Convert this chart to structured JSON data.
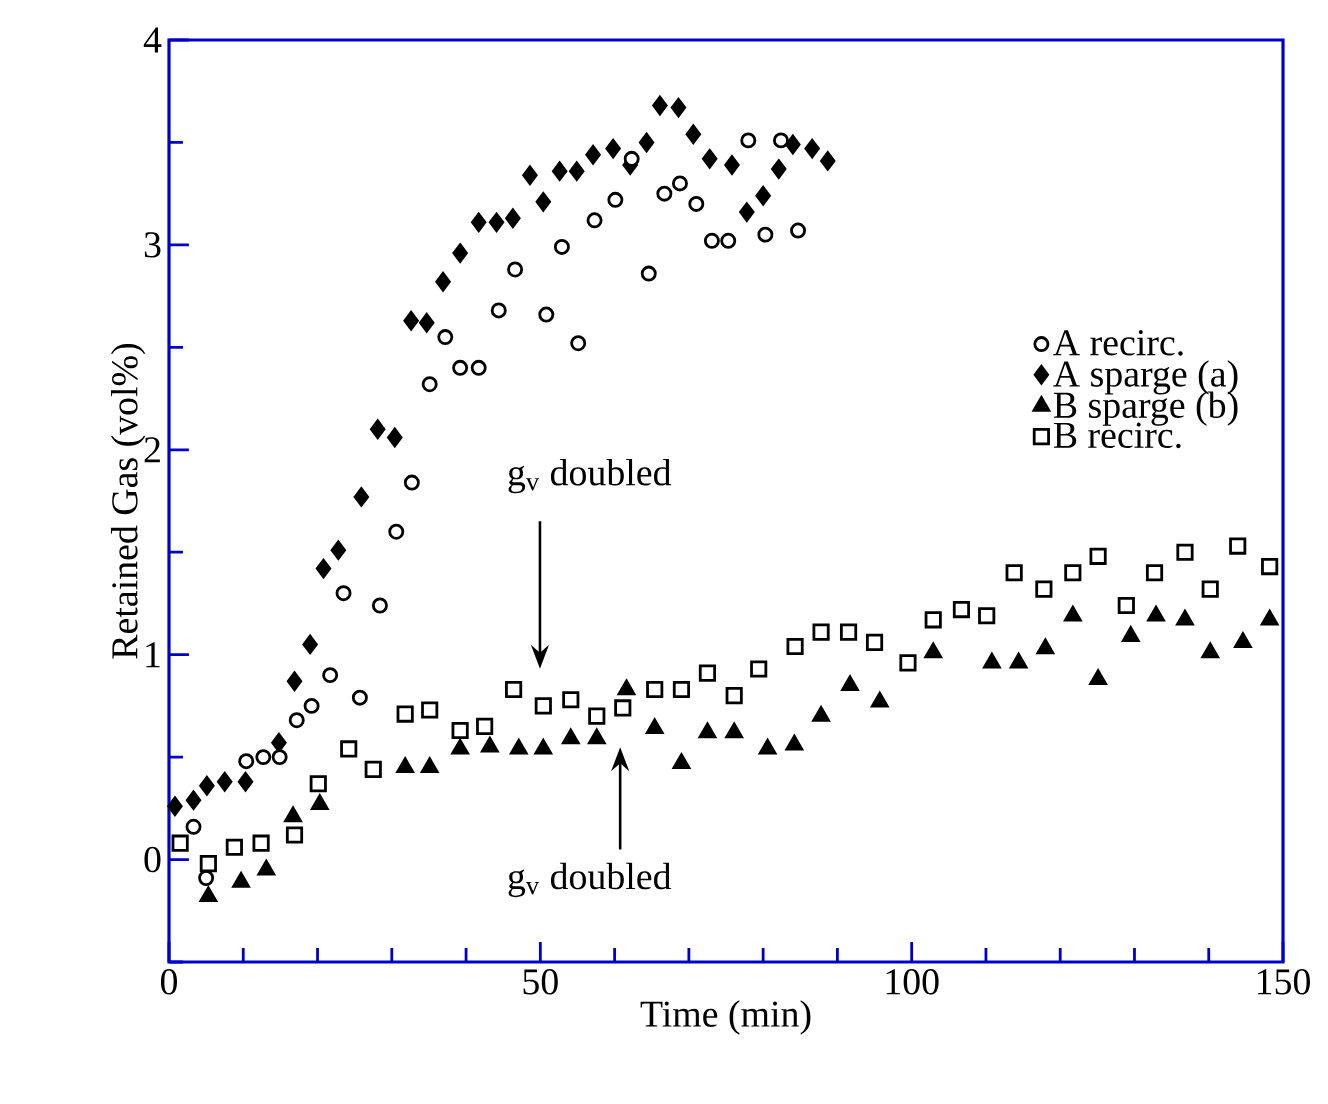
{
  "chart_data": {
    "type": "scatter",
    "xlabel": "Time (min)",
    "ylabel": "Retained Gas (vol%)",
    "xlim": [
      0,
      150
    ],
    "ylim": [
      -0.5,
      4
    ],
    "xticks": [
      0,
      {
        "value": 10,
        "label": null
      },
      {
        "value": 20,
        "label": null
      },
      {
        "value": 30,
        "label": null
      },
      {
        "value": 40,
        "label": null
      },
      50,
      {
        "value": 60,
        "label": null
      },
      {
        "value": 70,
        "label": null
      },
      {
        "value": 80,
        "label": null
      },
      {
        "value": 90,
        "label": null
      },
      100,
      {
        "value": 110,
        "label": null
      },
      {
        "value": 120,
        "label": null
      },
      {
        "value": 130,
        "label": null
      },
      {
        "value": 140,
        "label": null
      },
      150
    ],
    "yticks": [
      {
        "value": -0.5,
        "label": null
      },
      0,
      {
        "value": 0.5,
        "label": null
      },
      1,
      {
        "value": 1.5,
        "label": null
      },
      2,
      {
        "value": 2.5,
        "label": null
      },
      3,
      {
        "value": 3.5,
        "label": null
      },
      4
    ],
    "grid": false,
    "legend": "right",
    "annotations": [
      "g$_{v}$ doubled",
      "g$_{v}$ doubled"
    ],
    "series": [
      {
        "name": "A recirc.",
        "color": "#000000",
        "marker": "circle",
        "x": [
          3.3,
          5,
          10.4,
          12.7,
          14.9,
          17.2,
          19.2,
          21.7,
          23.5,
          25.7,
          28.4,
          30.6,
          32.7,
          35.1,
          37.2,
          39.2,
          41.7,
          44.4,
          46.6,
          50.8,
          52.9,
          55.1,
          57.3,
          60.1,
          62.3,
          64.6,
          66.7,
          68.8,
          71.0,
          73.1,
          75.3,
          78.0,
          80.3,
          82.4,
          84.7
        ],
        "values": [
          0.16,
          -0.09,
          0.48,
          0.5,
          0.5,
          0.68,
          0.75,
          0.9,
          1.3,
          0.79,
          1.24,
          1.6,
          1.84,
          2.32,
          2.55,
          2.4,
          2.4,
          2.68,
          2.88,
          2.66,
          2.99,
          2.52,
          3.12,
          3.22,
          3.42,
          2.86,
          3.25,
          3.3,
          3.2,
          3.02,
          3.02,
          3.51,
          3.05,
          3.51,
          3.07
        ]
      },
      {
        "name": "A sparge (a)",
        "color": "#000000",
        "marker": "diamond",
        "x": [
          0.8,
          3.3,
          5.1,
          7.5,
          10.3,
          14.8,
          16.9,
          19,
          20.8,
          22.8,
          25.9,
          28.1,
          30.4,
          32.6,
          34.7,
          36.9,
          39.2,
          41.7,
          44.1,
          46.3,
          48.6,
          50.4,
          52.6,
          54.9,
          57.1,
          59.8,
          62.1,
          64.3,
          66.1,
          68.6,
          70.6,
          72.8,
          75.8,
          77.8,
          80.0,
          82.1,
          84.0,
          86.6,
          88.7
        ],
        "values": [
          0.26,
          0.29,
          0.36,
          0.38,
          0.38,
          0.57,
          0.87,
          1.05,
          1.42,
          1.51,
          1.77,
          2.1,
          2.06,
          2.63,
          2.62,
          2.82,
          2.96,
          3.11,
          3.11,
          3.13,
          3.34,
          3.21,
          3.36,
          3.36,
          3.44,
          3.47,
          3.39,
          3.5,
          3.68,
          3.67,
          3.54,
          3.42,
          3.39,
          3.16,
          3.24,
          3.37,
          3.49,
          3.47,
          3.41
        ]
      },
      {
        "name": "B sparge (b)",
        "color": "#000000",
        "marker": "triangle",
        "x": [
          5.3,
          9.7,
          13.1,
          16.7,
          20.3,
          31.8,
          35.1,
          39.2,
          43.2,
          47.1,
          50.4,
          54.1,
          57.6,
          61.6,
          65.4,
          69.0,
          72.5,
          76.1,
          80.6,
          84.2,
          87.8,
          91.7,
          95.7,
          102.9,
          110.8,
          114.4,
          118.0,
          121.7,
          125.1,
          129.5,
          132.9,
          136.8,
          140.2,
          144.6,
          148.2
        ],
        "values": [
          -0.18,
          -0.11,
          -0.05,
          0.21,
          0.27,
          0.45,
          0.45,
          0.54,
          0.55,
          0.54,
          0.54,
          0.59,
          0.59,
          0.83,
          0.64,
          0.47,
          0.62,
          0.62,
          0.54,
          0.56,
          0.7,
          0.85,
          0.77,
          1.01,
          0.96,
          0.96,
          1.03,
          1.19,
          0.88,
          1.09,
          1.19,
          1.17,
          1.01,
          1.06,
          1.17
        ]
      },
      {
        "name": "B recirc.",
        "color": "#000000",
        "marker": "square",
        "x": [
          1.5,
          5.3,
          8.8,
          12.4,
          16.9,
          20.1,
          24.2,
          27.5,
          31.8,
          35.1,
          39.2,
          42.5,
          46.4,
          50.4,
          54.1,
          57.6,
          61.1,
          65.4,
          69.0,
          72.5,
          76.1,
          79.4,
          84.3,
          87.8,
          91.5,
          95.0,
          99.5,
          102.9,
          106.7,
          110.1,
          113.8,
          117.8,
          121.7,
          125.1,
          128.9,
          132.7,
          136.8,
          140.2,
          143.9,
          148.2
        ],
        "values": [
          0.08,
          -0.02,
          0.06,
          0.08,
          0.12,
          0.37,
          0.54,
          0.44,
          0.71,
          0.73,
          0.63,
          0.65,
          0.83,
          0.75,
          0.78,
          0.7,
          0.74,
          0.83,
          0.83,
          0.91,
          0.8,
          0.93,
          1.04,
          1.11,
          1.11,
          1.06,
          0.96,
          1.17,
          1.22,
          1.19,
          1.4,
          1.32,
          1.4,
          1.48,
          1.24,
          1.4,
          1.5,
          1.32,
          1.53,
          1.43
        ]
      }
    ]
  }
}
